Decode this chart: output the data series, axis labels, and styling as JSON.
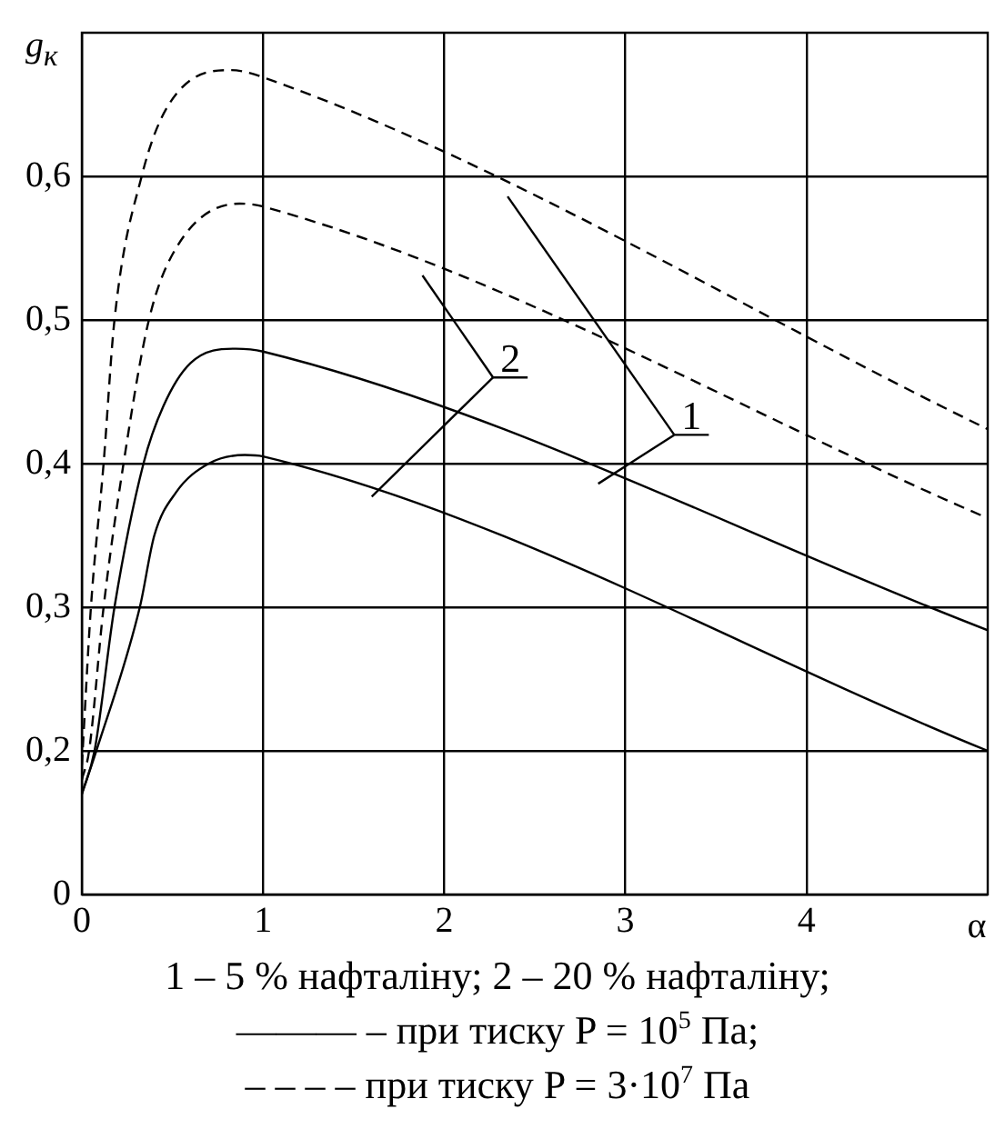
{
  "chart_data": {
    "type": "line",
    "xlabel": "α",
    "ylabel": "g$_{к}$",
    "xlim": [
      0,
      5
    ],
    "xticks": [
      0,
      1,
      2,
      3,
      4
    ],
    "ylim": [
      0.1,
      0.7
    ],
    "yticks": [
      {
        "value": 0.1,
        "label": "0"
      },
      {
        "value": 0.2,
        "label": "0,2"
      },
      {
        "value": 0.3,
        "label": "0,3"
      },
      {
        "value": 0.4,
        "label": "0,4"
      },
      {
        "value": 0.5,
        "label": "0,5"
      },
      {
        "value": 0.6,
        "label": "0,6"
      }
    ],
    "grid": true,
    "legend": false,
    "marker": "none",
    "series": [
      {
        "color": "#000000",
        "line_style": "dashed",
        "x": [
          0,
          0.05,
          0.12,
          0.18,
          0.33,
          0.48,
          0.82,
          1,
          5
        ],
        "values": [
          0.19,
          0.3,
          0.4,
          0.5,
          0.6,
          0.65,
          0.674,
          0.669,
          0.424
        ]
      },
      {
        "color": "#000000",
        "line_style": "dashed",
        "x": [
          0,
          0.04,
          0.12,
          0.23,
          0.37,
          0.52,
          0.87,
          1,
          5
        ],
        "values": [
          0.18,
          0.2,
          0.3,
          0.4,
          0.5,
          0.55,
          0.581,
          0.579,
          0.362
        ]
      },
      {
        "color": "#000000",
        "line_style": "solid",
        "x": [
          0,
          0.07,
          0.18,
          0.34,
          0.45,
          0.6,
          0.85,
          1,
          5
        ],
        "values": [
          0.17,
          0.2,
          0.3,
          0.4,
          0.44,
          0.47,
          0.48,
          0.478,
          0.284
        ]
      },
      {
        "color": "#000000",
        "line_style": "solid",
        "x": [
          0,
          0.08,
          0.32,
          0.4,
          0.52,
          0.7,
          0.9,
          1,
          5
        ],
        "values": [
          0.17,
          0.2,
          0.3,
          0.35,
          0.38,
          0.4,
          0.406,
          0.405,
          0.2
        ]
      }
    ],
    "annotations": [
      "1",
      "2",
      "1 – 5 % нафталіну; 2 – 20 % нафталіну;",
      "——— – при тиску P = 10$^{5}$ Па;",
      "– – – – при тиску P = 3·10$^{7}$ Па"
    ]
  }
}
